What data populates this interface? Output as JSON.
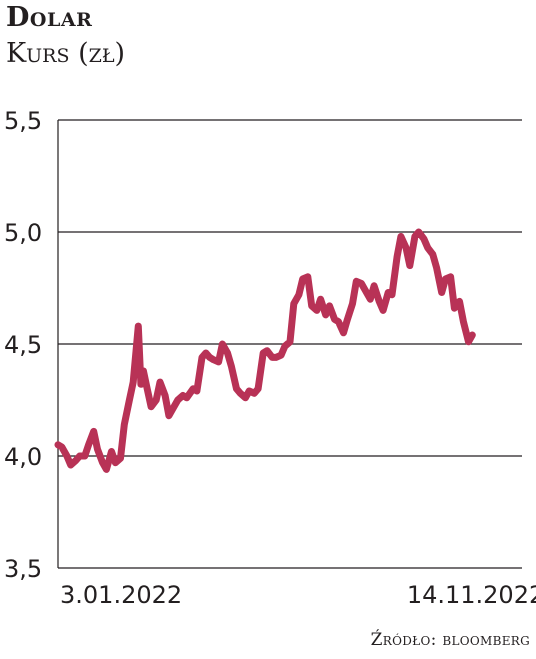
{
  "header": {
    "title": "Dolar",
    "subtitle": "Kurs (zł)"
  },
  "footer": {
    "source": "Źródło: bloomberg"
  },
  "colors": {
    "line": "#b83256",
    "grid": "#231f20",
    "text": "#231f20"
  },
  "chart_data": {
    "type": "line",
    "title": "Dolar",
    "subtitle": "Kurs (zł)",
    "xlabel": "",
    "ylabel": "",
    "ylim": [
      3.5,
      5.5
    ],
    "yticks": [
      {
        "value": 5.5,
        "label": "5,5"
      },
      {
        "value": 5.0,
        "label": "5,0"
      },
      {
        "value": 4.5,
        "label": "4,5"
      },
      {
        "value": 4.0,
        "label": "4,0"
      },
      {
        "value": 3.5,
        "label": "3,5"
      }
    ],
    "x_range": [
      "2022-01-03",
      "2023-01-02"
    ],
    "xticks": [
      {
        "date": "2022-01-03",
        "label": "3.01.2022"
      },
      {
        "date": "2022-11-14",
        "label": "14.11.2022"
      }
    ],
    "grid": "horizontal",
    "series": [
      {
        "color": "#b83256",
        "points": [
          [
            "2022-01-03",
            4.05
          ],
          [
            "2022-01-06",
            4.04
          ],
          [
            "2022-01-10",
            4.0
          ],
          [
            "2022-01-13",
            3.96
          ],
          [
            "2022-01-17",
            3.98
          ],
          [
            "2022-01-20",
            4.0
          ],
          [
            "2022-01-24",
            4.0
          ],
          [
            "2022-01-27",
            4.05
          ],
          [
            "2022-01-31",
            4.11
          ],
          [
            "2022-02-03",
            4.03
          ],
          [
            "2022-02-07",
            3.97
          ],
          [
            "2022-02-10",
            3.94
          ],
          [
            "2022-02-14",
            4.02
          ],
          [
            "2022-02-17",
            3.97
          ],
          [
            "2022-02-21",
            3.99
          ],
          [
            "2022-02-24",
            4.14
          ],
          [
            "2022-02-28",
            4.25
          ],
          [
            "2022-03-03",
            4.33
          ],
          [
            "2022-03-07",
            4.58
          ],
          [
            "2022-03-09",
            4.32
          ],
          [
            "2022-03-11",
            4.38
          ],
          [
            "2022-03-14",
            4.3
          ],
          [
            "2022-03-17",
            4.22
          ],
          [
            "2022-03-21",
            4.25
          ],
          [
            "2022-03-24",
            4.33
          ],
          [
            "2022-03-28",
            4.27
          ],
          [
            "2022-03-31",
            4.18
          ],
          [
            "2022-04-04",
            4.22
          ],
          [
            "2022-04-07",
            4.25
          ],
          [
            "2022-04-11",
            4.27
          ],
          [
            "2022-04-14",
            4.26
          ],
          [
            "2022-04-19",
            4.3
          ],
          [
            "2022-04-22",
            4.29
          ],
          [
            "2022-04-26",
            4.44
          ],
          [
            "2022-04-29",
            4.46
          ],
          [
            "2022-05-02",
            4.44
          ],
          [
            "2022-05-05",
            4.43
          ],
          [
            "2022-05-09",
            4.42
          ],
          [
            "2022-05-12",
            4.5
          ],
          [
            "2022-05-16",
            4.46
          ],
          [
            "2022-05-19",
            4.4
          ],
          [
            "2022-05-23",
            4.3
          ],
          [
            "2022-05-26",
            4.28
          ],
          [
            "2022-05-30",
            4.26
          ],
          [
            "2022-06-02",
            4.29
          ],
          [
            "2022-06-06",
            4.28
          ],
          [
            "2022-06-09",
            4.3
          ],
          [
            "2022-06-13",
            4.46
          ],
          [
            "2022-06-16",
            4.47
          ],
          [
            "2022-06-20",
            4.44
          ],
          [
            "2022-06-23",
            4.44
          ],
          [
            "2022-06-27",
            4.45
          ],
          [
            "2022-06-30",
            4.49
          ],
          [
            "2022-07-04",
            4.51
          ],
          [
            "2022-07-07",
            4.68
          ],
          [
            "2022-07-11",
            4.72
          ],
          [
            "2022-07-14",
            4.79
          ],
          [
            "2022-07-18",
            4.8
          ],
          [
            "2022-07-21",
            4.67
          ],
          [
            "2022-07-25",
            4.65
          ],
          [
            "2022-07-28",
            4.7
          ],
          [
            "2022-08-01",
            4.63
          ],
          [
            "2022-08-04",
            4.67
          ],
          [
            "2022-08-08",
            4.61
          ],
          [
            "2022-08-11",
            4.6
          ],
          [
            "2022-08-15",
            4.55
          ],
          [
            "2022-08-18",
            4.61
          ],
          [
            "2022-08-22",
            4.68
          ],
          [
            "2022-08-25",
            4.78
          ],
          [
            "2022-08-29",
            4.77
          ],
          [
            "2022-09-01",
            4.74
          ],
          [
            "2022-09-05",
            4.7
          ],
          [
            "2022-09-08",
            4.76
          ],
          [
            "2022-09-12",
            4.69
          ],
          [
            "2022-09-15",
            4.65
          ],
          [
            "2022-09-19",
            4.73
          ],
          [
            "2022-09-22",
            4.72
          ],
          [
            "2022-09-26",
            4.89
          ],
          [
            "2022-09-29",
            4.98
          ],
          [
            "2022-10-03",
            4.93
          ],
          [
            "2022-10-06",
            4.85
          ],
          [
            "2022-10-10",
            4.98
          ],
          [
            "2022-10-13",
            5.0
          ],
          [
            "2022-10-17",
            4.97
          ],
          [
            "2022-10-20",
            4.93
          ],
          [
            "2022-10-24",
            4.9
          ],
          [
            "2022-10-27",
            4.84
          ],
          [
            "2022-10-31",
            4.73
          ],
          [
            "2022-11-03",
            4.79
          ],
          [
            "2022-11-07",
            4.8
          ],
          [
            "2022-11-10",
            4.66
          ],
          [
            "2022-11-14",
            4.69
          ],
          [
            "2022-11-17",
            4.6
          ],
          [
            "2022-11-21",
            4.51
          ],
          [
            "2022-11-24",
            4.54
          ]
        ]
      }
    ]
  }
}
